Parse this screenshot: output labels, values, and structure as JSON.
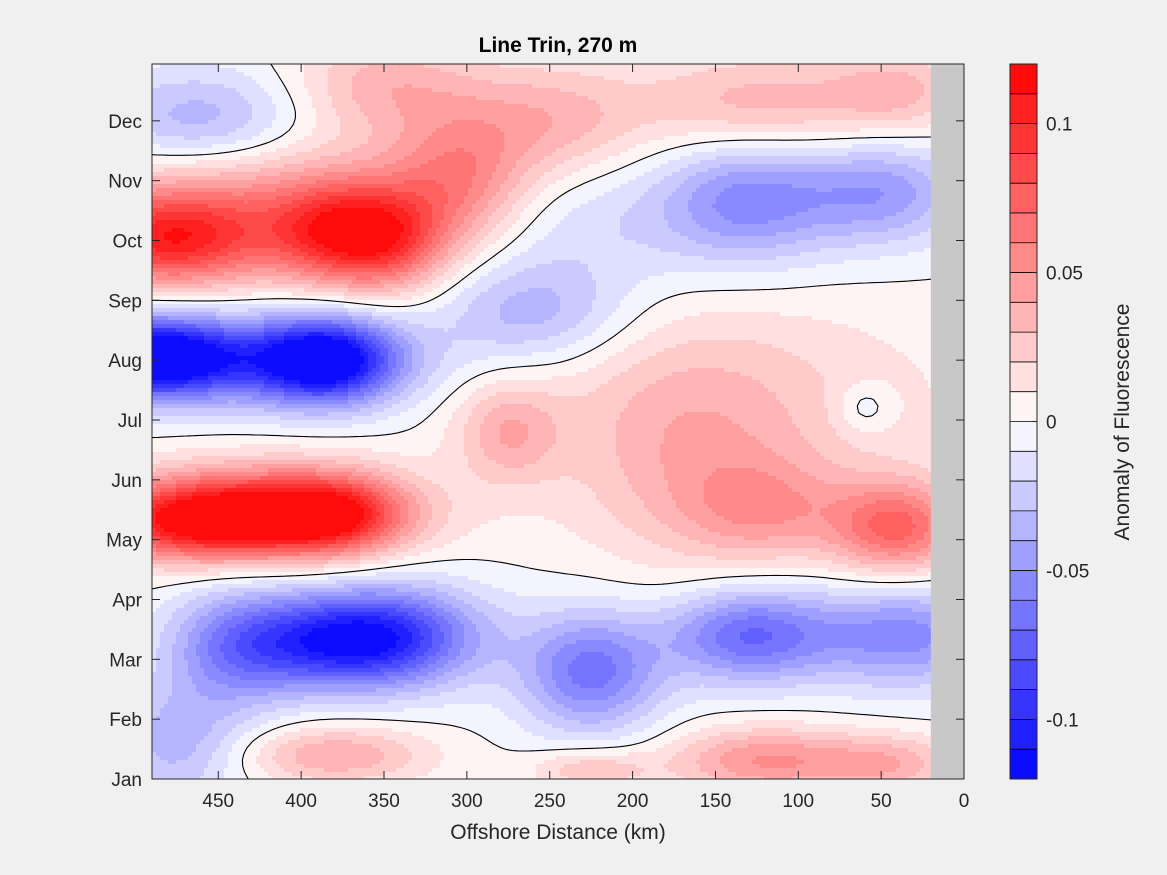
{
  "chart_data": {
    "type": "heatmap",
    "title": "Line Trin, 270 m",
    "xlabel": "Offshore Distance (km)",
    "ylabel": "",
    "colorbar_label": "Anomaly of Fluorescence",
    "x_direction": "reversed",
    "xlim": [
      0,
      490
    ],
    "ylim": [
      0,
      11.95
    ],
    "xticks": [
      450,
      400,
      350,
      300,
      250,
      200,
      150,
      100,
      50,
      0
    ],
    "xtick_labels": [
      "450",
      "400",
      "350",
      "300",
      "250",
      "200",
      "150",
      "100",
      "50",
      "0"
    ],
    "yticks": [
      0,
      1,
      2,
      3,
      4,
      5,
      6,
      7,
      8,
      9,
      10,
      11
    ],
    "ytick_labels": [
      "Jan",
      "Feb",
      "Mar",
      "Apr",
      "May",
      "Jun",
      "Jul",
      "Aug",
      "Sep",
      "Oct",
      "Nov",
      "Dec"
    ],
    "clim": [
      -0.12,
      0.12
    ],
    "cbar_ticks": [
      -0.1,
      -0.05,
      0,
      0.05,
      0.1
    ],
    "cbar_tick_labels": [
      "-0.1",
      "-0.05",
      "0",
      "0.05",
      "0.1"
    ],
    "contour_levels": 24,
    "zero_contour": true,
    "no_data_x_range": [
      0,
      20
    ],
    "colors": {
      "positive": "#ff0000",
      "negative": "#0000ff",
      "zero": "#ffffff",
      "no_data": "#c8c8c8",
      "background": "#f0f0f0",
      "axes": "#262626"
    },
    "anomaly_features": [
      {
        "x": 460,
        "month": 4.3,
        "value": 0.09,
        "sx": 45,
        "sy": 0.45
      },
      {
        "x": 380,
        "month": 4.4,
        "value": 0.07,
        "sx": 30,
        "sy": 0.45
      },
      {
        "x": 420,
        "month": 4.5,
        "value": 0.07,
        "sx": 60,
        "sy": 0.55
      },
      {
        "x": 40,
        "month": 4.2,
        "value": 0.07,
        "sx": 28,
        "sy": 0.55
      },
      {
        "x": 120,
        "month": 4.5,
        "value": 0.035,
        "sx": 35,
        "sy": 0.6
      },
      {
        "x": 275,
        "month": 5.8,
        "value": 0.035,
        "sx": 22,
        "sy": 0.6
      },
      {
        "x": 170,
        "month": 5.4,
        "value": 0.025,
        "sx": 50,
        "sy": 1.4
      },
      {
        "x": 125,
        "month": 6.2,
        "value": 0.02,
        "sx": 90,
        "sy": 1.3
      },
      {
        "x": 490,
        "month": 7.05,
        "value": -0.115,
        "sx": 35,
        "sy": 0.45
      },
      {
        "x": 385,
        "month": 7.0,
        "value": -0.11,
        "sx": 30,
        "sy": 0.5
      },
      {
        "x": 440,
        "month": 7.0,
        "value": -0.05,
        "sx": 70,
        "sy": 0.55
      },
      {
        "x": 260,
        "month": 7.8,
        "value": -0.035,
        "sx": 40,
        "sy": 0.6
      },
      {
        "x": 60,
        "month": 6.2,
        "value": -0.02,
        "sx": 12,
        "sy": 0.3
      },
      {
        "x": 480,
        "month": 9.0,
        "value": 0.085,
        "sx": 40,
        "sy": 0.55
      },
      {
        "x": 380,
        "month": 9.1,
        "value": 0.07,
        "sx": 28,
        "sy": 0.6
      },
      {
        "x": 345,
        "month": 9.0,
        "value": 0.06,
        "sx": 25,
        "sy": 0.6
      },
      {
        "x": 305,
        "month": 10.0,
        "value": 0.05,
        "sx": 30,
        "sy": 0.8
      },
      {
        "x": 420,
        "month": 9.6,
        "value": 0.045,
        "sx": 80,
        "sy": 0.8
      },
      {
        "x": 250,
        "month": 11.0,
        "value": 0.035,
        "sx": 40,
        "sy": 0.7
      },
      {
        "x": 350,
        "month": 11.6,
        "value": 0.035,
        "sx": 40,
        "sy": 0.6
      },
      {
        "x": 125,
        "month": 11.3,
        "value": 0.035,
        "sx": 50,
        "sy": 0.6
      },
      {
        "x": 40,
        "month": 11.5,
        "value": 0.03,
        "sx": 30,
        "sy": 0.5
      },
      {
        "x": 460,
        "month": 11.0,
        "value": -0.04,
        "sx": 45,
        "sy": 0.6
      },
      {
        "x": 130,
        "month": 9.7,
        "value": -0.045,
        "sx": 35,
        "sy": 0.7
      },
      {
        "x": 50,
        "month": 9.8,
        "value": -0.045,
        "sx": 35,
        "sy": 0.6
      },
      {
        "x": 220,
        "month": 9.3,
        "value": -0.02,
        "sx": 90,
        "sy": 0.8
      },
      {
        "x": 380,
        "month": 2.3,
        "value": -0.08,
        "sx": 40,
        "sy": 0.55
      },
      {
        "x": 340,
        "month": 2.4,
        "value": -0.06,
        "sx": 40,
        "sy": 0.6
      },
      {
        "x": 440,
        "month": 2.2,
        "value": -0.05,
        "sx": 30,
        "sy": 0.7
      },
      {
        "x": 225,
        "month": 1.8,
        "value": -0.065,
        "sx": 30,
        "sy": 0.7
      },
      {
        "x": 130,
        "month": 2.4,
        "value": -0.07,
        "sx": 35,
        "sy": 0.55
      },
      {
        "x": 35,
        "month": 2.4,
        "value": -0.055,
        "sx": 40,
        "sy": 0.6
      },
      {
        "x": 475,
        "month": 0.6,
        "value": -0.035,
        "sx": 30,
        "sy": 0.7
      },
      {
        "x": 380,
        "month": 0.4,
        "value": 0.04,
        "sx": 40,
        "sy": 0.35
      },
      {
        "x": 120,
        "month": 0.3,
        "value": 0.05,
        "sx": 40,
        "sy": 0.4
      },
      {
        "x": 45,
        "month": 0.25,
        "value": 0.035,
        "sx": 30,
        "sy": 0.35
      },
      {
        "x": 225,
        "month": 0.15,
        "value": 0.03,
        "sx": 25,
        "sy": 0.25
      }
    ]
  }
}
